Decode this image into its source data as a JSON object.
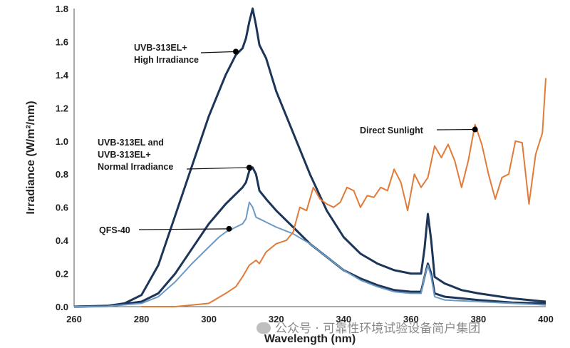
{
  "chart_data": {
    "type": "line",
    "xlabel": "Wavelength (nm)",
    "ylabel": "Irradiance (W/m²/nm)",
    "xlim": [
      260,
      400
    ],
    "ylim": [
      0,
      1.8
    ],
    "xticks": [
      "260",
      "280",
      "300",
      "320",
      "340",
      "360",
      "380",
      "400"
    ],
    "yticks": [
      "0.0",
      "0.2",
      "0.4",
      "0.6",
      "0.8",
      "1.0",
      "1.2",
      "1.4",
      "1.6",
      "1.8"
    ],
    "grid": false,
    "series": [
      {
        "id": "uvb-high",
        "color": "#1d3558",
        "points": [
          [
            260,
            0
          ],
          [
            270,
            0.005
          ],
          [
            275,
            0.02
          ],
          [
            280,
            0.07
          ],
          [
            285,
            0.25
          ],
          [
            290,
            0.55
          ],
          [
            295,
            0.85
          ],
          [
            300,
            1.15
          ],
          [
            303,
            1.3
          ],
          [
            305,
            1.4
          ],
          [
            308,
            1.52
          ],
          [
            310,
            1.56
          ],
          [
            311,
            1.62
          ],
          [
            312,
            1.72
          ],
          [
            313,
            1.8
          ],
          [
            314,
            1.7
          ],
          [
            315,
            1.58
          ],
          [
            317,
            1.5
          ],
          [
            320,
            1.3
          ],
          [
            325,
            1.05
          ],
          [
            330,
            0.8
          ],
          [
            335,
            0.58
          ],
          [
            340,
            0.42
          ],
          [
            345,
            0.32
          ],
          [
            350,
            0.26
          ],
          [
            355,
            0.22
          ],
          [
            360,
            0.2
          ],
          [
            363,
            0.2
          ],
          [
            364,
            0.35
          ],
          [
            365,
            0.56
          ],
          [
            366,
            0.4
          ],
          [
            367,
            0.18
          ],
          [
            370,
            0.14
          ],
          [
            375,
            0.1
          ],
          [
            380,
            0.08
          ],
          [
            390,
            0.05
          ],
          [
            400,
            0.03
          ]
        ]
      },
      {
        "id": "uvb-normal",
        "color": "#1d3558",
        "points": [
          [
            260,
            0
          ],
          [
            270,
            0.003
          ],
          [
            280,
            0.03
          ],
          [
            285,
            0.08
          ],
          [
            290,
            0.2
          ],
          [
            295,
            0.35
          ],
          [
            300,
            0.5
          ],
          [
            305,
            0.62
          ],
          [
            308,
            0.68
          ],
          [
            310,
            0.72
          ],
          [
            311,
            0.75
          ],
          [
            312,
            0.82
          ],
          [
            313,
            0.84
          ],
          [
            314,
            0.8
          ],
          [
            315,
            0.7
          ],
          [
            317,
            0.65
          ],
          [
            320,
            0.58
          ],
          [
            325,
            0.48
          ],
          [
            330,
            0.38
          ],
          [
            335,
            0.3
          ],
          [
            340,
            0.22
          ],
          [
            345,
            0.17
          ],
          [
            350,
            0.13
          ],
          [
            355,
            0.1
          ],
          [
            360,
            0.09
          ],
          [
            363,
            0.09
          ],
          [
            364,
            0.18
          ],
          [
            365,
            0.26
          ],
          [
            366,
            0.2
          ],
          [
            367,
            0.08
          ],
          [
            370,
            0.06
          ],
          [
            380,
            0.04
          ],
          [
            390,
            0.025
          ],
          [
            400,
            0.02
          ]
        ]
      },
      {
        "id": "qfs-40",
        "color": "#6b9ac4",
        "points": [
          [
            260,
            0
          ],
          [
            270,
            0.002
          ],
          [
            280,
            0.02
          ],
          [
            285,
            0.06
          ],
          [
            290,
            0.15
          ],
          [
            295,
            0.26
          ],
          [
            300,
            0.36
          ],
          [
            303,
            0.42
          ],
          [
            305,
            0.45
          ],
          [
            308,
            0.48
          ],
          [
            310,
            0.5
          ],
          [
            311,
            0.53
          ],
          [
            312,
            0.63
          ],
          [
            313,
            0.6
          ],
          [
            314,
            0.54
          ],
          [
            316,
            0.52
          ],
          [
            320,
            0.48
          ],
          [
            325,
            0.44
          ],
          [
            330,
            0.38
          ],
          [
            335,
            0.3
          ],
          [
            340,
            0.22
          ],
          [
            345,
            0.16
          ],
          [
            350,
            0.12
          ],
          [
            355,
            0.09
          ],
          [
            360,
            0.08
          ],
          [
            363,
            0.08
          ],
          [
            364,
            0.18
          ],
          [
            365,
            0.25
          ],
          [
            366,
            0.18
          ],
          [
            367,
            0.06
          ],
          [
            370,
            0.04
          ],
          [
            380,
            0.03
          ],
          [
            390,
            0.02
          ],
          [
            400,
            0.01
          ]
        ]
      },
      {
        "id": "sunlight",
        "color": "#e07b39",
        "points": [
          [
            280,
            0
          ],
          [
            290,
            0
          ],
          [
            295,
            0.01
          ],
          [
            300,
            0.02
          ],
          [
            305,
            0.08
          ],
          [
            308,
            0.12
          ],
          [
            310,
            0.18
          ],
          [
            312,
            0.25
          ],
          [
            314,
            0.28
          ],
          [
            315,
            0.26
          ],
          [
            317,
            0.33
          ],
          [
            320,
            0.38
          ],
          [
            323,
            0.4
          ],
          [
            325,
            0.45
          ],
          [
            327,
            0.6
          ],
          [
            329,
            0.58
          ],
          [
            331,
            0.72
          ],
          [
            333,
            0.65
          ],
          [
            335,
            0.62
          ],
          [
            337,
            0.6
          ],
          [
            339,
            0.63
          ],
          [
            341,
            0.72
          ],
          [
            343,
            0.7
          ],
          [
            345,
            0.6
          ],
          [
            347,
            0.67
          ],
          [
            349,
            0.66
          ],
          [
            351,
            0.72
          ],
          [
            353,
            0.7
          ],
          [
            355,
            0.83
          ],
          [
            357,
            0.75
          ],
          [
            359,
            0.58
          ],
          [
            361,
            0.8
          ],
          [
            363,
            0.72
          ],
          [
            365,
            0.78
          ],
          [
            367,
            0.97
          ],
          [
            369,
            0.9
          ],
          [
            371,
            0.98
          ],
          [
            373,
            0.88
          ],
          [
            375,
            0.72
          ],
          [
            377,
            0.88
          ],
          [
            379,
            1.1
          ],
          [
            381,
            0.98
          ],
          [
            383,
            0.8
          ],
          [
            385,
            0.65
          ],
          [
            387,
            0.78
          ],
          [
            389,
            0.8
          ],
          [
            391,
            1.0
          ],
          [
            393,
            0.99
          ],
          [
            395,
            0.62
          ],
          [
            397,
            0.92
          ],
          [
            399,
            1.05
          ],
          [
            400,
            1.38
          ]
        ]
      }
    ],
    "annotations": [
      {
        "id": "ann-high",
        "lines": [
          "UVB-313EL+",
          "High Irradiance"
        ],
        "point": [
          308,
          1.54
        ]
      },
      {
        "id": "ann-normal",
        "lines": [
          "UVB-313EL and",
          "UVB-313EL+",
          "Normal Irradiance"
        ],
        "point": [
          312,
          0.84
        ]
      },
      {
        "id": "ann-qfs",
        "lines": [
          "QFS-40"
        ],
        "point": [
          306,
          0.47
        ]
      },
      {
        "id": "ann-sun",
        "lines": [
          "Direct Sunlight"
        ],
        "point": [
          379,
          1.07
        ]
      }
    ]
  },
  "watermark": {
    "text": "公众号 · 可靠性环境试验设备简户集团"
  }
}
